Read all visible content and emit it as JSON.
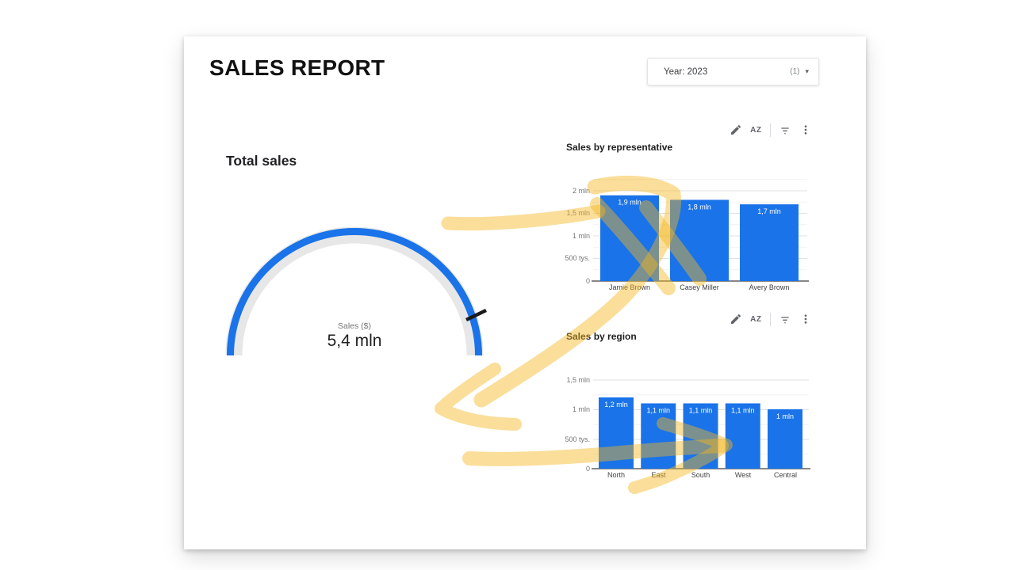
{
  "page": {
    "title": "SALES REPORT"
  },
  "filter": {
    "label": "Year: 2023",
    "count": "(1)",
    "caret": "▾"
  },
  "toolbar": {
    "sort_label": "AZ",
    "icons": [
      "edit-pencil",
      "sort-az",
      "filter",
      "more-options"
    ]
  },
  "colors": {
    "bar_blue": "#1a73e8",
    "gauge_blue": "#1a73e8",
    "gauge_track": "#e7e7e7",
    "annotation_amber": "#f5b51e",
    "grid_major": "#e2e2e2",
    "grid_minor": "#f2f2f2",
    "text_dark": "#202124",
    "text_gray": "#757575"
  },
  "chart_data": [
    {
      "id": "total_sales",
      "type": "gauge",
      "title": "Total sales",
      "metric_label": "Sales ($)",
      "value_display": "5,4 mln",
      "value_mln": 5.4
    },
    {
      "id": "sales_by_representative",
      "type": "bar",
      "title": "Sales by representative",
      "categories": [
        "Jamie Brown",
        "Casey Miller",
        "Avery Brown"
      ],
      "values": [
        1.9,
        1.8,
        1.7
      ],
      "value_labels": [
        "1,9 mln",
        "1,8 mln",
        "1,7 mln"
      ],
      "yticks": [
        "2 mln",
        "1,5 mln",
        "1 mln",
        "500 tys.",
        "0"
      ],
      "ylim": [
        0,
        2.25
      ],
      "grid": true,
      "legend": "none",
      "bar_color": "#1a73e8"
    },
    {
      "id": "sales_by_region",
      "type": "bar",
      "title": "Sales by region",
      "categories": [
        "North",
        "East",
        "South",
        "West",
        "Central"
      ],
      "values": [
        1.2,
        1.1,
        1.1,
        1.1,
        1.0
      ],
      "value_labels": [
        "1,2 mln",
        "1,1 mln",
        "1,1 mln",
        "1,1 mln",
        "1 mln"
      ],
      "yticks": [
        "1,5 mln",
        "1 mln",
        "500 tys.",
        "0"
      ],
      "ylim": [
        0,
        1.6
      ],
      "grid": true,
      "legend": "none",
      "bar_color": "#1a73e8"
    }
  ],
  "annotations": {
    "description": "yellow highlighter arrows",
    "color": "#f5b51e"
  }
}
